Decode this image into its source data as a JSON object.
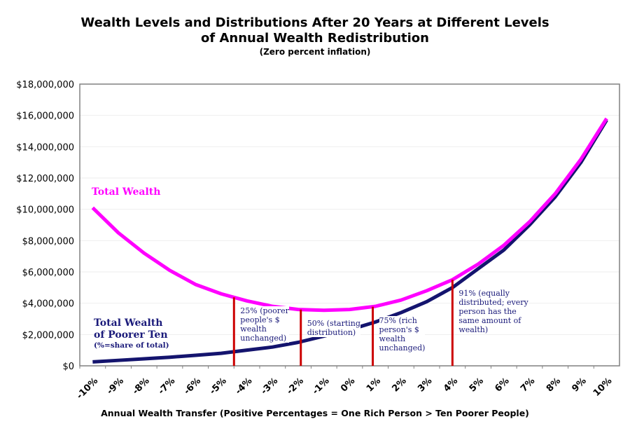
{
  "chart_data": {
    "type": "line",
    "title": "Wealth Levels and Distributions After 20 Years at Different Levels",
    "title_line2": "of Annual Wealth Redistribution",
    "subtitle": "(Zero percent inflation)",
    "xlabel": "Annual Wealth Transfer (Positive Percentages = One Rich Person > Ten Poorer People)",
    "ylabel": "",
    "categories": [
      "-10%",
      "-9%",
      "-8%",
      "-7%",
      "-6%",
      "-5%",
      "-4%",
      "-3%",
      "-2%",
      "-1%",
      "0%",
      "1%",
      "2%",
      "3%",
      "4%",
      "5%",
      "6%",
      "7%",
      "8%",
      "9%",
      "10%"
    ],
    "x": [
      -10,
      -9,
      -8,
      -7,
      -6,
      -5,
      -4,
      -3,
      -2,
      -1,
      0,
      1,
      2,
      3,
      4,
      5,
      6,
      7,
      8,
      9,
      10
    ],
    "ylim": [
      0,
      18000000
    ],
    "yticks": [
      "$0",
      "$2,000,000",
      "$4,000,000",
      "$6,000,000",
      "$8,000,000",
      "$10,000,000",
      "$12,000,000",
      "$14,000,000",
      "$16,000,000",
      "$18,000,000"
    ],
    "grid": true,
    "series": [
      {
        "name": "Total Wealth",
        "color": "#ff00ff",
        "values": [
          10100000,
          8500000,
          7200000,
          6100000,
          5200000,
          4600000,
          4150000,
          3800000,
          3600000,
          3550000,
          3600000,
          3800000,
          4200000,
          4800000,
          5500000,
          6500000,
          7700000,
          9200000,
          11000000,
          13200000,
          15800000
        ]
      },
      {
        "name": "Total Wealth of Poorer Ten",
        "name_line1": "Total Wealth",
        "name_line2": "of Poorer Ten",
        "note": "(%=share of total)",
        "color": "#14146e",
        "values": [
          250000,
          350000,
          450000,
          550000,
          670000,
          800000,
          1000000,
          1200000,
          1500000,
          1900000,
          2300000,
          2800000,
          3400000,
          4100000,
          5000000,
          6200000,
          7400000,
          9000000,
          10800000,
          13000000,
          15700000
        ]
      }
    ],
    "markers_color": "#cc0000",
    "annotations": [
      {
        "x": -4.5,
        "lines": [
          "25% (poorer",
          "people's $",
          "wealth",
          "unchanged)"
        ]
      },
      {
        "x": -1.9,
        "lines": [
          "50% (starting",
          "distribution)"
        ]
      },
      {
        "x": 0.9,
        "lines": [
          "75% (rich",
          "person's $",
          "wealth",
          "unchanged)"
        ]
      },
      {
        "x": 4.0,
        "lines": [
          "91% (equally",
          "distributed; every",
          "person has the",
          "same amount of",
          "wealth)"
        ]
      }
    ]
  }
}
